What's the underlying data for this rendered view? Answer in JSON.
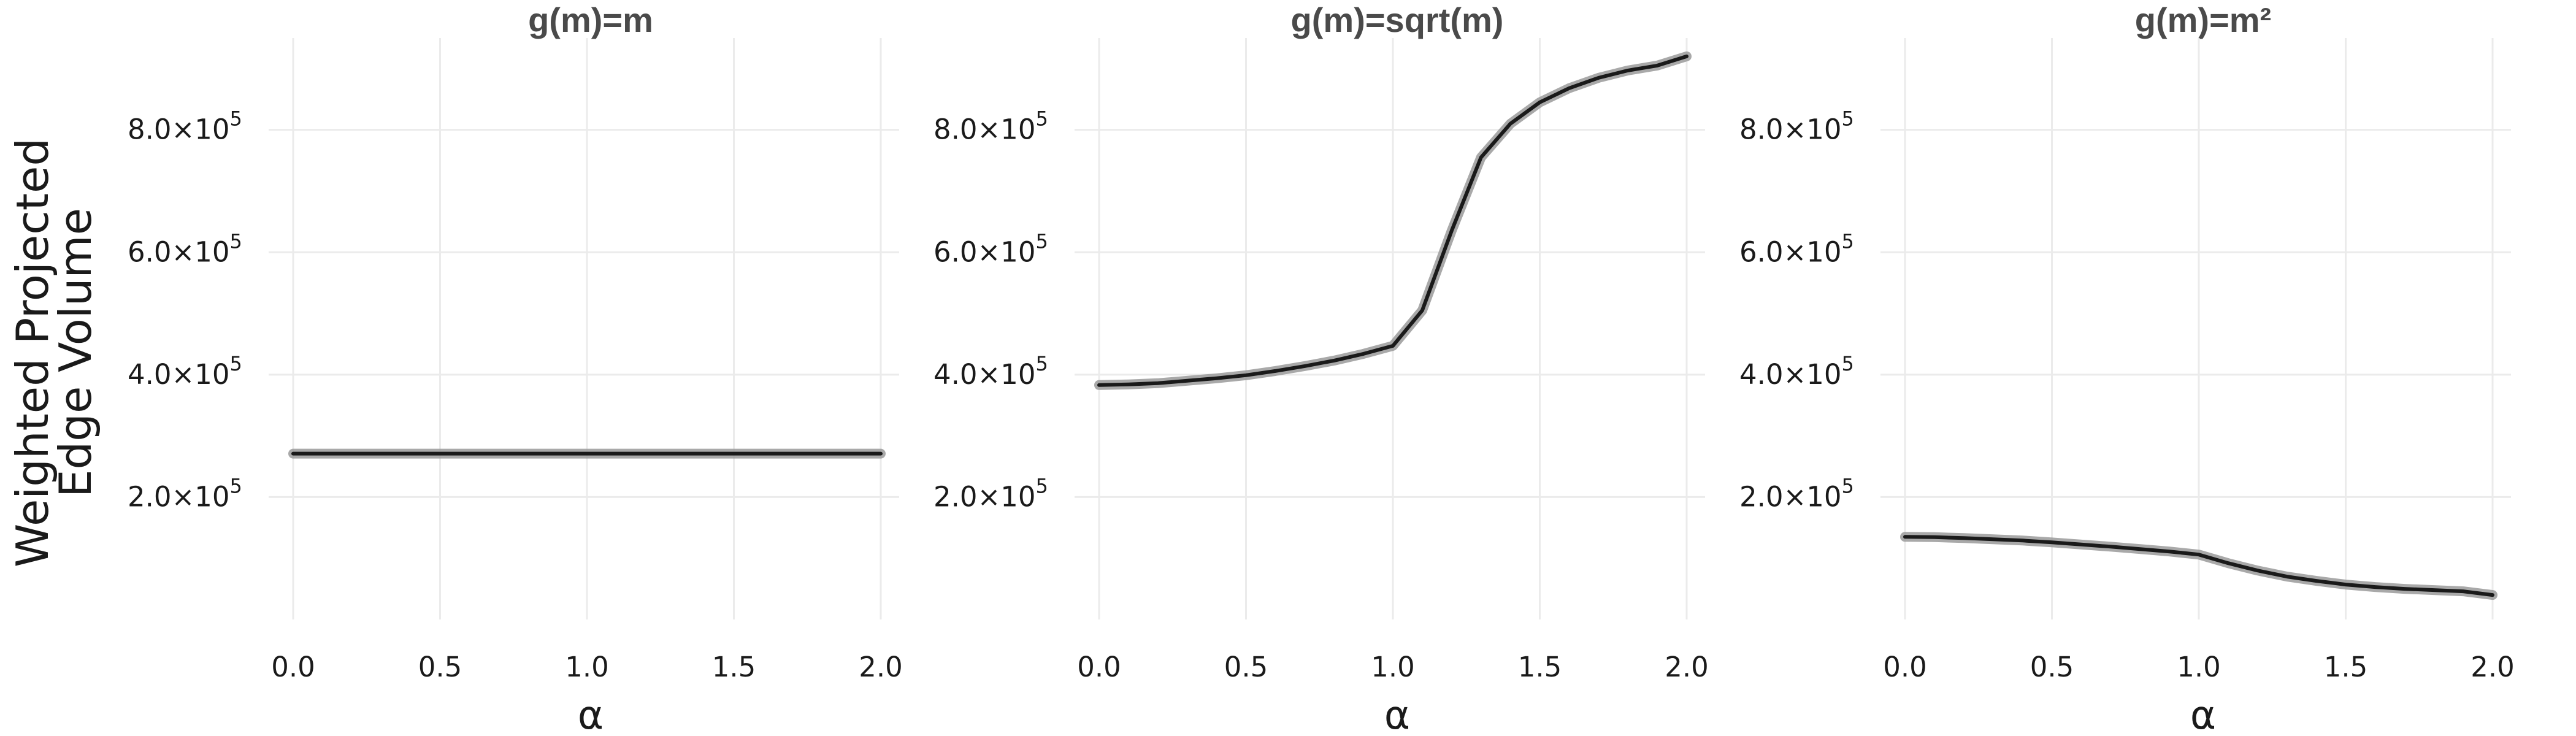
{
  "chart_data": {
    "type": "line",
    "shared_ylabel": [
      "Weighted Projected",
      "Edge Volume"
    ],
    "grid": true,
    "panels": [
      {
        "title": "g(m)=m",
        "xlabel": "α",
        "x_ticks": [
          "0.0",
          "0.5",
          "1.0",
          "1.5",
          "2.0"
        ],
        "y_ticks": [
          {
            "mantissa": "2.0",
            "exp": "5"
          },
          {
            "mantissa": "4.0",
            "exp": "5"
          },
          {
            "mantissa": "6.0",
            "exp": "5"
          },
          {
            "mantissa": "8.0",
            "exp": "5"
          }
        ],
        "xlim": [
          0,
          2
        ],
        "ylim": [
          0,
          950000
        ],
        "series": [
          {
            "x": [
              0,
              0.5,
              1.0,
              1.5,
              2.0
            ],
            "y": [
              271000,
              271000,
              271000,
              271000,
              271000
            ]
          }
        ]
      },
      {
        "title": "g(m)=sqrt(m)",
        "xlabel": "α",
        "x_ticks": [
          "0.0",
          "0.5",
          "1.0",
          "1.5",
          "2.0"
        ],
        "y_ticks": [
          {
            "mantissa": "2.0",
            "exp": "5"
          },
          {
            "mantissa": "4.0",
            "exp": "5"
          },
          {
            "mantissa": "6.0",
            "exp": "5"
          },
          {
            "mantissa": "8.0",
            "exp": "5"
          }
        ],
        "xlim": [
          0,
          2
        ],
        "ylim": [
          0,
          950000
        ],
        "series": [
          {
            "x": [
              0,
              0.1,
              0.2,
              0.3,
              0.4,
              0.5,
              0.6,
              0.7,
              0.8,
              0.9,
              1.0,
              1.1,
              1.2,
              1.3,
              1.4,
              1.5,
              1.6,
              1.7,
              1.8,
              1.9,
              2.0
            ],
            "y": [
              383000,
              384000,
              386000,
              390000,
              394000,
              399000,
              406000,
              414000,
              423000,
              434000,
              447000,
              505000,
              635000,
              755000,
              810000,
              845000,
              868000,
              885000,
              897000,
              905000,
              920000
            ]
          }
        ]
      },
      {
        "title": "g(m)=m²",
        "xlabel": "α",
        "x_ticks": [
          "0.0",
          "0.5",
          "1.0",
          "1.5",
          "2.0"
        ],
        "y_ticks": [
          {
            "mantissa": "2.0",
            "exp": "5"
          },
          {
            "mantissa": "4.0",
            "exp": "5"
          },
          {
            "mantissa": "6.0",
            "exp": "5"
          },
          {
            "mantissa": "8.0",
            "exp": "5"
          }
        ],
        "xlim": [
          0,
          2
        ],
        "ylim": [
          0,
          950000
        ],
        "series": [
          {
            "x": [
              0,
              0.1,
              0.2,
              0.3,
              0.4,
              0.5,
              0.6,
              0.7,
              0.8,
              0.9,
              1.0,
              1.1,
              1.2,
              1.3,
              1.4,
              1.5,
              1.6,
              1.7,
              1.8,
              1.9,
              2.0
            ],
            "y": [
              135000,
              134500,
              133000,
              131000,
              129000,
              126000,
              122500,
              119000,
              115000,
              111000,
              106000,
              92000,
              80000,
              70000,
              63000,
              57000,
              53000,
              50000,
              48000,
              46000,
              40000
            ]
          }
        ]
      }
    ],
    "colors": {
      "line": "#1a1a1a",
      "band": "#9a9a9a",
      "grid": "#ebebeb"
    }
  }
}
